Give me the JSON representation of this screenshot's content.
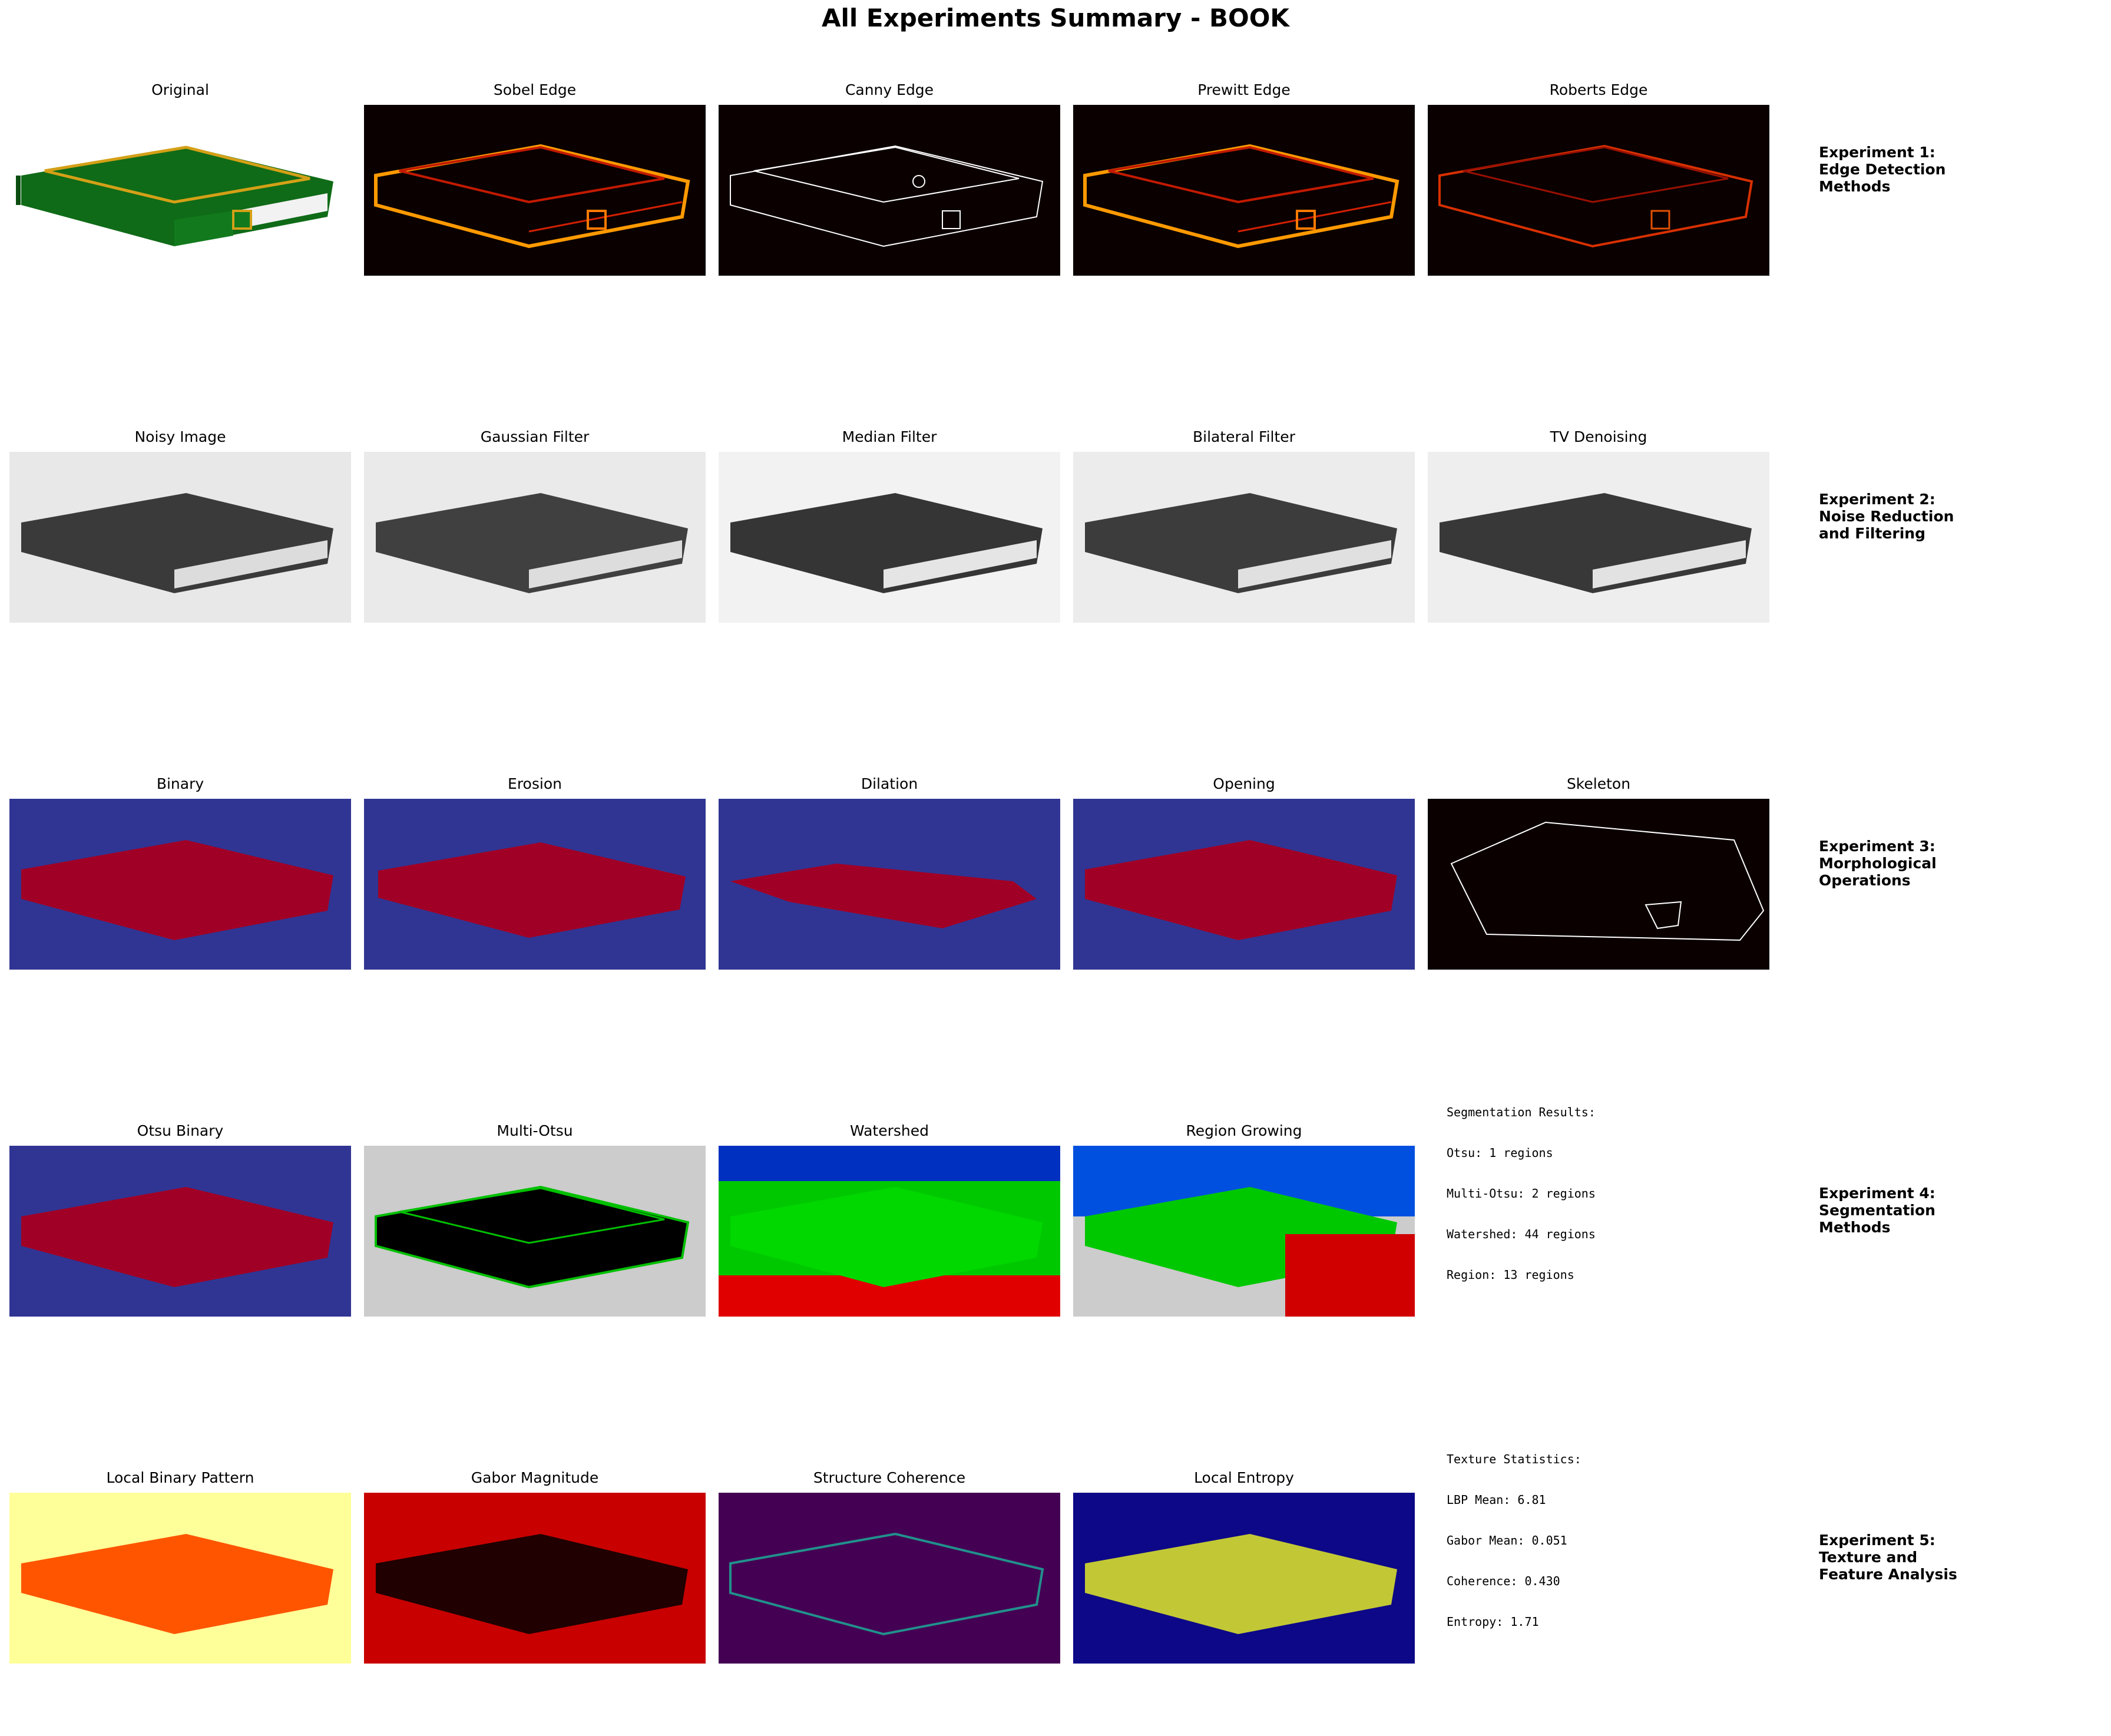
{
  "title": "All Experiments Summary - BOOK",
  "rows": [
    {
      "panels": [
        "Original",
        "Sobel Edge",
        "Canny Edge",
        "Prewitt Edge",
        "Roberts Edge"
      ],
      "experiment": [
        "Experiment 1:",
        "Edge Detection",
        "Methods"
      ]
    },
    {
      "panels": [
        "Noisy Image",
        "Gaussian Filter",
        "Median Filter",
        "Bilateral Filter",
        "TV Denoising"
      ],
      "experiment": [
        "Experiment 2:",
        "Noise Reduction",
        "and Filtering"
      ]
    },
    {
      "panels": [
        "Binary",
        "Erosion",
        "Dilation",
        "Opening",
        "Skeleton"
      ],
      "experiment": [
        "Experiment 3:",
        "Morphological",
        "Operations"
      ]
    },
    {
      "panels": [
        "Otsu Binary",
        "Multi-Otsu",
        "Watershed",
        "Region Growing"
      ],
      "experiment": [
        "Experiment 4:",
        "Segmentation",
        "Methods"
      ],
      "stats": [
        "Segmentation Results:",
        "Otsu: 1 regions",
        "Multi-Otsu: 2 regions",
        "Watershed: 44 regions",
        "Region: 13 regions"
      ]
    },
    {
      "panels": [
        "Local Binary Pattern",
        "Gabor Magnitude",
        "Structure Coherence",
        "Local Entropy"
      ],
      "experiment": [
        "Experiment 5:",
        "Texture and",
        "Feature Analysis"
      ],
      "stats": [
        "Texture Statistics:",
        "LBP Mean: 6.81",
        "Gabor Mean: 0.051",
        "Coherence: 0.430",
        "Entropy: 1.71"
      ]
    }
  ],
  "colors": {
    "book_green": "#177a1d",
    "gold": "#d4a017",
    "hot_dark": "#0b0000",
    "binary_blue": "#303593",
    "binary_red": "#a10026",
    "viridis_dark": "#440154",
    "plasma_dark": "#0d0887"
  }
}
